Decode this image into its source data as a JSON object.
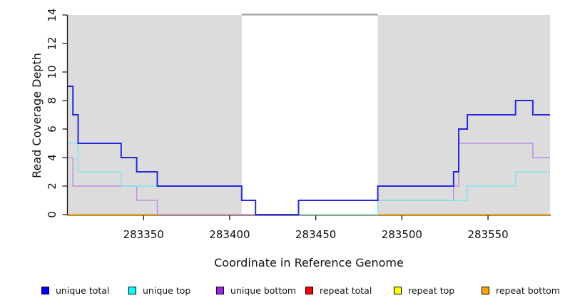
{
  "chart_data": {
    "type": "line",
    "subtype": "step-coverage",
    "title": "",
    "xlabel": "Coordinate in Reference Genome",
    "ylabel": "Read Coverage Depth",
    "xlim": [
      283306,
      283586
    ],
    "ylim": [
      0,
      14
    ],
    "x_ticks": [
      283350,
      283400,
      283450,
      283500,
      283550
    ],
    "y_ticks": [
      0,
      2,
      4,
      6,
      8,
      10,
      12,
      14
    ],
    "grid": false,
    "legend_position": "bottom",
    "shaded_regions": [
      {
        "x0": 283306,
        "x1": 283407
      },
      {
        "x0": 283486,
        "x1": 283586
      }
    ],
    "gap_top_line": {
      "x0": 283407,
      "x1": 283486
    },
    "colors": {
      "shaded_region_fill": "#dcdcdc",
      "gap_line": "#999999",
      "axis": "#1a1a1a",
      "background": "#ffffff"
    },
    "series": [
      {
        "name": "repeat total",
        "legend_color": "#ff0000",
        "line_color": "#ff0000",
        "line_width": 2,
        "steps": [
          [
            283306,
            0
          ],
          [
            283586,
            0
          ]
        ]
      },
      {
        "name": "repeat top",
        "legend_color": "#ffff00",
        "line_color": "#ffff00",
        "line_width": 2,
        "steps": [
          [
            283306,
            0
          ],
          [
            283586,
            0
          ]
        ]
      },
      {
        "name": "repeat bottom",
        "legend_color": "#ffa500",
        "line_color": "#ffa500",
        "line_width": 2,
        "steps": [
          [
            283306,
            0
          ],
          [
            283586,
            0
          ]
        ]
      },
      {
        "name": "unique bottom",
        "legend_color": "#a020f0",
        "line_color": "#c28fe4",
        "line_width": 1.5,
        "steps": [
          [
            283306,
            4
          ],
          [
            283309,
            2
          ],
          [
            283346,
            1
          ],
          [
            283358,
            0
          ],
          [
            283440,
            1
          ],
          [
            283530,
            2
          ],
          [
            283533,
            5
          ],
          [
            283576,
            4
          ],
          [
            283586,
            4
          ]
        ]
      },
      {
        "name": "unique top",
        "legend_color": "#00ffff",
        "line_color": "#82e6ef",
        "line_width": 1.5,
        "steps": [
          [
            283306,
            5
          ],
          [
            283312,
            3
          ],
          [
            283337,
            2
          ],
          [
            283407,
            1
          ],
          [
            283415,
            0
          ],
          [
            283486,
            1
          ],
          [
            283538,
            2
          ],
          [
            283566,
            3
          ],
          [
            283586,
            3
          ]
        ]
      },
      {
        "name": "unique total",
        "legend_color": "#0000ff",
        "line_color": "#2828e0",
        "line_width": 2,
        "steps": [
          [
            283306,
            9
          ],
          [
            283309,
            7
          ],
          [
            283312,
            5
          ],
          [
            283337,
            4
          ],
          [
            283346,
            3
          ],
          [
            283358,
            2
          ],
          [
            283407,
            1
          ],
          [
            283415,
            0
          ],
          [
            283440,
            1
          ],
          [
            283486,
            2
          ],
          [
            283530,
            3
          ],
          [
            283533,
            6
          ],
          [
            283538,
            7
          ],
          [
            283566,
            8
          ],
          [
            283576,
            7
          ],
          [
            283586,
            7
          ]
        ]
      }
    ],
    "legend_order": [
      "unique total",
      "unique top",
      "unique bottom",
      "repeat total",
      "repeat top",
      "repeat bottom"
    ]
  }
}
